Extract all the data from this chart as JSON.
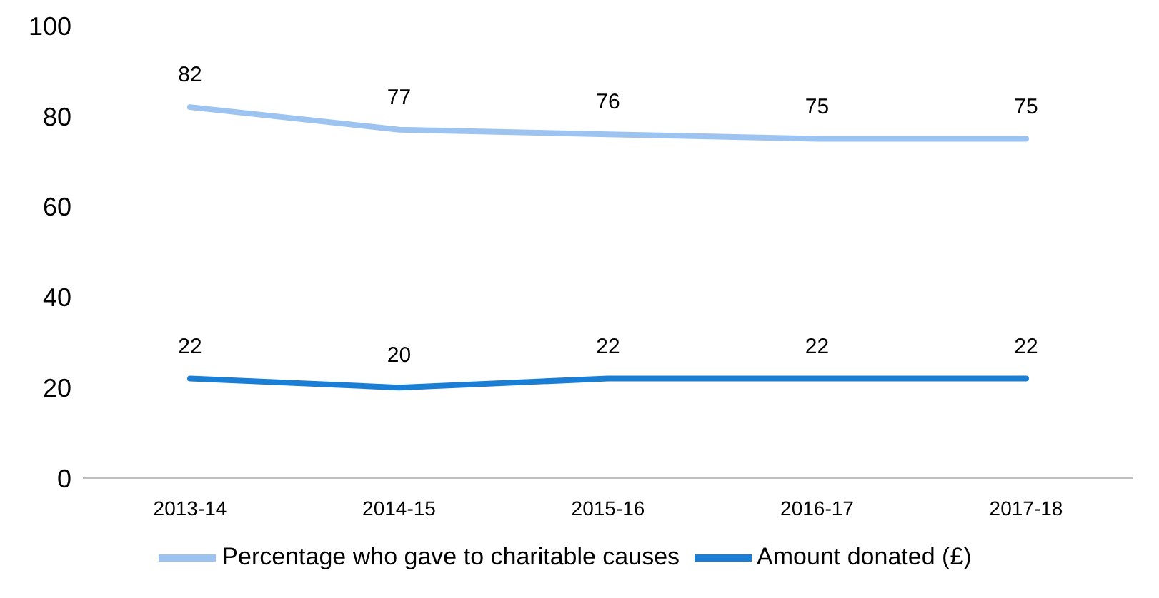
{
  "chart_data": {
    "type": "line",
    "categories": [
      "2013-14",
      "2014-15",
      "2015-16",
      "2016-17",
      "2017-18"
    ],
    "series": [
      {
        "name": "Percentage who gave to charitable causes",
        "color": "#9dc3f0",
        "values": [
          82,
          77,
          76,
          75,
          75
        ]
      },
      {
        "name": "Amount donated (£)",
        "color": "#1a7fd4",
        "values": [
          22,
          20,
          22,
          22,
          22
        ]
      }
    ],
    "ylim": [
      0,
      100
    ],
    "yticks": [
      0,
      20,
      40,
      60,
      80,
      100
    ],
    "grid": false,
    "legend": "bottom",
    "data_labels": true,
    "marker": "none",
    "line_style": "solid"
  }
}
